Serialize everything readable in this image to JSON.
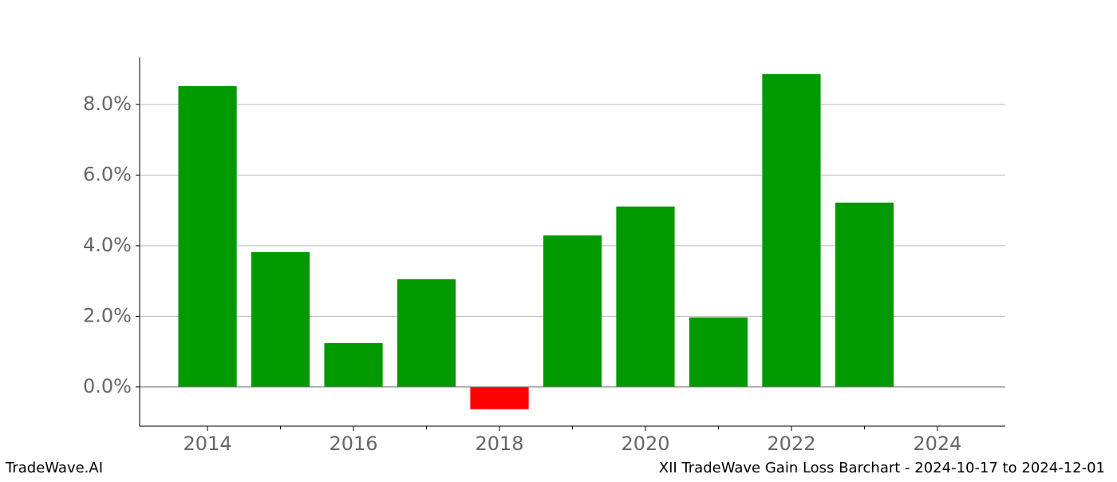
{
  "chart_data": {
    "type": "bar",
    "x": [
      2014,
      2015,
      2016,
      2017,
      2018,
      2019,
      2020,
      2021,
      2022,
      2023
    ],
    "values": [
      8.52,
      3.82,
      1.24,
      3.05,
      -0.63,
      4.29,
      5.11,
      1.97,
      8.86,
      5.22
    ],
    "positive_color": "#009900",
    "negative_color": "#ff0000",
    "xlim": [
      2013.07,
      2024.93
    ],
    "xticks": [
      2014,
      2016,
      2018,
      2020,
      2022,
      2024
    ],
    "xminorticks": [
      2015,
      2017,
      2019,
      2021,
      2023
    ],
    "ylim": [
      -1.11,
      9.33
    ],
    "yticks": [
      {
        "value": 0,
        "label": "0.0%"
      },
      {
        "value": 2,
        "label": "2.0%"
      },
      {
        "value": 4,
        "label": "4.0%"
      },
      {
        "value": 6,
        "label": "6.0%"
      },
      {
        "value": 8,
        "label": "8.0%"
      }
    ],
    "grid": true
  },
  "footer": {
    "left": "TradeWave.AI",
    "right": "XII TradeWave Gain Loss Barchart - 2024-10-17 to 2024-12-01"
  }
}
